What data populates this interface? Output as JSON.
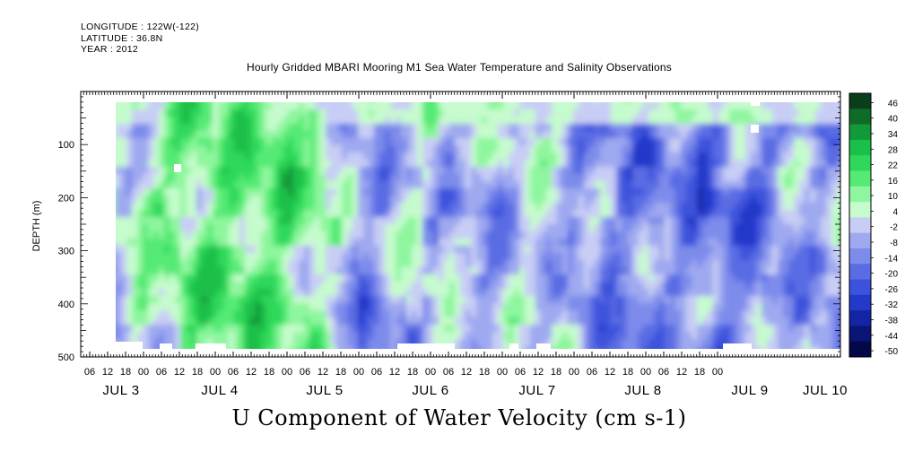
{
  "header": {
    "longitude": "LONGITUDE : 122W(-122)",
    "latitude": "LATITUDE : 36.8N",
    "year": "YEAR : 2012"
  },
  "chart_data": {
    "type": "heatmap",
    "title": "Hourly Gridded MBARI Mooring M1 Sea Water Temperature and Salinity Observations",
    "xlabel": "U Component of Water Velocity (cm s-1)",
    "ylabel": "DEPTH (m)",
    "y_reversed": true,
    "ylim": [
      500,
      0
    ],
    "y_major_ticks": [
      100,
      200,
      300,
      400,
      500
    ],
    "x_hour_labels": [
      "06",
      "12",
      "18",
      "00",
      "06",
      "12",
      "18",
      "00",
      "06",
      "12",
      "18",
      "00",
      "06",
      "12",
      "18",
      "00",
      "06",
      "12",
      "18",
      "00",
      "06",
      "12",
      "18",
      "00",
      "06",
      "12",
      "18",
      "00",
      "06",
      "12",
      "18",
      "00",
      "06",
      "12",
      "18",
      "00"
    ],
    "x_day_labels": [
      "JUL  3",
      "JUL  4",
      "JUL  5",
      "JUL  6",
      "JUL  7",
      "JUL  8",
      "JUL  9",
      "JUL 10"
    ],
    "colorbar": {
      "levels": [
        46,
        40,
        34,
        28,
        22,
        16,
        10,
        4,
        -2,
        -8,
        -14,
        -20,
        -26,
        -32,
        -38,
        -44,
        -50
      ],
      "colors": [
        "#0a3d1a",
        "#0f6b28",
        "#12993a",
        "#1bc04a",
        "#2fd85a",
        "#55ea75",
        "#8ef69e",
        "#c6fbcd",
        "#c8cdf5",
        "#9ea9f0",
        "#7d8beb",
        "#5a6ce4",
        "#3c52dc",
        "#2239c9",
        "#1325a5",
        "#0a1575",
        "#040848"
      ]
    },
    "columns_by_time": [
      {
        "time": "JUL 3 12",
        "dominant": "mixed",
        "mean_u": 2
      },
      {
        "time": "JUL 4 00",
        "dominant": "positive",
        "mean_u": 14
      },
      {
        "time": "JUL 4 12",
        "dominant": "positive",
        "mean_u": 18
      },
      {
        "time": "JUL 5 00",
        "dominant": "positive",
        "mean_u": 16
      },
      {
        "time": "JUL 5 12",
        "dominant": "negative",
        "mean_u": -8
      },
      {
        "time": "JUL 6 00",
        "dominant": "mixed",
        "mean_u": 0
      },
      {
        "time": "JUL 6 12",
        "dominant": "negative",
        "mean_u": -6
      },
      {
        "time": "JUL 7 00",
        "dominant": "mixed",
        "mean_u": 1
      },
      {
        "time": "JUL 7 12",
        "dominant": "negative",
        "mean_u": -12
      },
      {
        "time": "JUL 8 00",
        "dominant": "negative",
        "mean_u": -10
      },
      {
        "time": "JUL 8 12",
        "dominant": "negative",
        "mean_u": -16
      },
      {
        "time": "JUL 9 00",
        "dominant": "negative",
        "mean_u": -8
      },
      {
        "time": "JUL 9 12",
        "dominant": "negative",
        "mean_u": -6
      }
    ]
  }
}
